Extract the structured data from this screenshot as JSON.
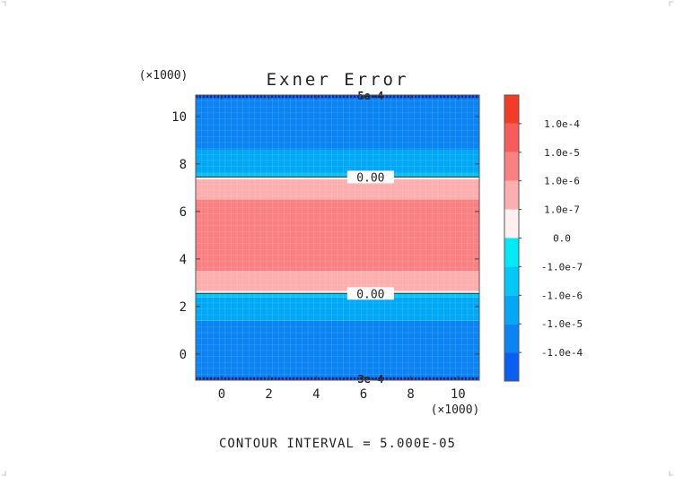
{
  "chart_data": {
    "type": "heatmap",
    "title": "Exner Error",
    "x_axis": {
      "multiplier_label": "(×1000)",
      "range": [
        -1.1,
        10.9
      ],
      "ticks": [
        0,
        2,
        4,
        6,
        8,
        10
      ],
      "tick_labels": [
        "0",
        "2",
        "4",
        "6",
        "8",
        "10"
      ]
    },
    "y_axis": {
      "multiplier_label": "(×1000)",
      "range": [
        -1.1,
        10.9
      ],
      "ticks": [
        0,
        2,
        4,
        6,
        8,
        10
      ],
      "tick_labels": [
        "0",
        "2",
        "4",
        "6",
        "8",
        "10"
      ]
    },
    "bands": [
      {
        "y0": -1.1,
        "y1": -0.95,
        "level": 0
      },
      {
        "y0": -0.95,
        "y1": 1.4,
        "level": 1
      },
      {
        "y0": 1.4,
        "y1": 2.4,
        "level": 2
      },
      {
        "y0": 2.4,
        "y1": 2.55,
        "level": 3
      },
      {
        "y0": 2.55,
        "y1": 2.65,
        "level": 5
      },
      {
        "y0": 2.65,
        "y1": 3.5,
        "level": 6
      },
      {
        "y0": 3.5,
        "y1": 6.5,
        "level": 7
      },
      {
        "y0": 6.5,
        "y1": 7.35,
        "level": 6
      },
      {
        "y0": 7.35,
        "y1": 7.45,
        "level": 5
      },
      {
        "y0": 7.45,
        "y1": 7.6,
        "level": 3
      },
      {
        "y0": 7.6,
        "y1": 8.6,
        "level": 2
      },
      {
        "y0": 8.6,
        "y1": 10.75,
        "level": 1
      },
      {
        "y0": 10.75,
        "y1": 10.9,
        "level": 0
      }
    ],
    "contour_lines": [
      {
        "y": 2.55,
        "label": "0.00",
        "label_x": 6.3
      },
      {
        "y": 7.45,
        "label": "0.00",
        "label_x": 6.3
      }
    ],
    "edge_labels": [
      {
        "y": 10.9,
        "label": "5e-4",
        "x": 6.3
      },
      {
        "y": -1.1,
        "label": "3e-4",
        "x": 6.3
      }
    ],
    "colorbar": {
      "colors": [
        "#0a5ff0",
        "#0a84f2",
        "#00a8f6",
        "#00c9f7",
        "#00eaf5",
        "#fff0f0",
        "#fdaeae",
        "#fa8181",
        "#f75b5b",
        "#f23c28"
      ],
      "labels": [
        "-1.0e-4",
        "-1.0e-5",
        "-1.0e-6",
        "-1.0e-7",
        "0.0",
        "1.0e-7",
        "1.0e-6",
        "1.0e-5",
        "1.0e-4"
      ]
    },
    "footer": "CONTOUR INTERVAL = 5.000E-05"
  }
}
